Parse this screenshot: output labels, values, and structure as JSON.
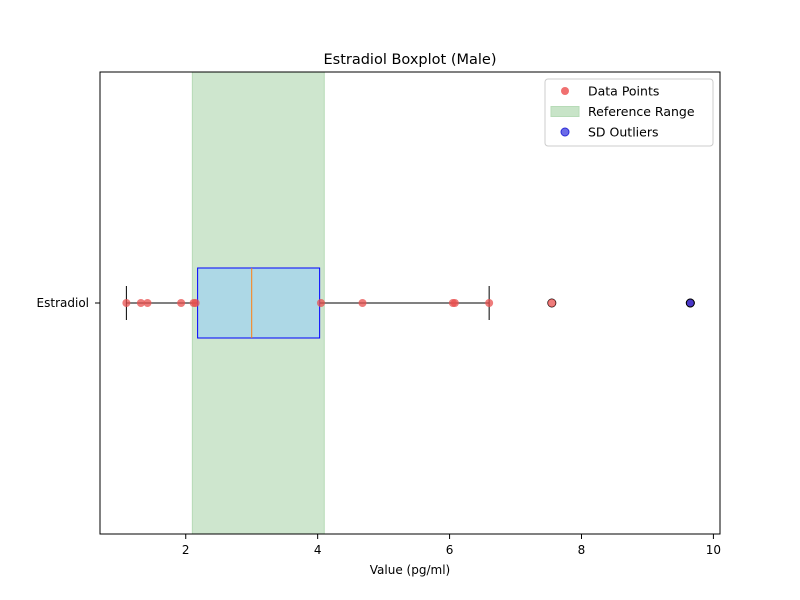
{
  "chart_data": {
    "type": "boxplot",
    "title": "Estradiol Boxplot (Male)",
    "xlabel": "Value (pg/ml)",
    "ylabel": "",
    "category": "Estradiol",
    "xlim": [
      0.7,
      10.1
    ],
    "xticks": [
      2,
      4,
      6,
      8,
      10
    ],
    "grid": false,
    "legend_position": "top-right",
    "reference_range": [
      2.1,
      4.1
    ],
    "box": {
      "whisker_low": 1.1,
      "q1": 2.18,
      "median": 3.0,
      "q3": 4.03,
      "whisker_high": 6.6
    },
    "data_points": [
      1.1,
      1.32,
      1.42,
      1.93,
      2.12,
      2.15,
      4.05,
      4.68,
      6.05,
      6.08,
      6.6,
      7.55,
      9.65
    ],
    "fliers": [
      7.55,
      9.65
    ],
    "sd_outliers": [
      9.65
    ],
    "legend": [
      {
        "label": "Data Points",
        "kind": "point",
        "color": "#f07070"
      },
      {
        "label": "Reference Range",
        "kind": "patch",
        "color": "#c8e4c8"
      },
      {
        "label": "SD Outliers",
        "kind": "point",
        "color": "#6b6be8"
      }
    ],
    "colors": {
      "box_fill": "#add8e6",
      "box_edge": "#0000ff",
      "median": "#ff7f0e",
      "reference_fill": "#cee6ce",
      "reference_edge": "#b7dbb7",
      "points": "#e8504f",
      "sd_outlier": "#2b2bd6"
    }
  }
}
